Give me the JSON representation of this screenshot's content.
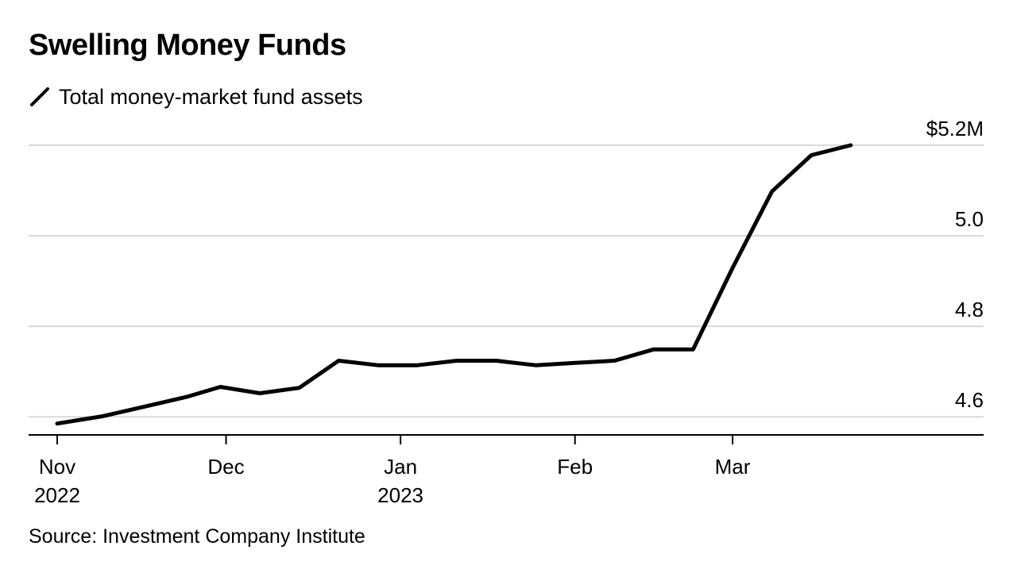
{
  "title": "Swelling Money Funds",
  "legend": {
    "label": "Total money-market fund assets",
    "icon": "diagonal-line-icon"
  },
  "source": "Source: Investment Company Institute",
  "colors": {
    "line": "#000000",
    "grid": "#d9d9d9",
    "axis": "#000000",
    "background": "#ffffff"
  },
  "chart_data": {
    "type": "line",
    "title": "Swelling Money Funds",
    "xlabel": "",
    "ylabel": "",
    "ylim": [
      4.56,
      5.2
    ],
    "grid": true,
    "legend_position": "top-left",
    "y_ticks": [
      {
        "value": 5.2,
        "label": "$5.2M"
      },
      {
        "value": 5.0,
        "label": "5.0"
      },
      {
        "value": 4.8,
        "label": "4.8"
      },
      {
        "value": 4.6,
        "label": "4.6"
      }
    ],
    "x_ticks": [
      {
        "date": "2022-11-01",
        "label": "Nov",
        "sublabel": "2022"
      },
      {
        "date": "2022-12-01",
        "label": "Dec",
        "sublabel": ""
      },
      {
        "date": "2023-01-01",
        "label": "Jan",
        "sublabel": "2023"
      },
      {
        "date": "2023-02-01",
        "label": "Feb",
        "sublabel": ""
      },
      {
        "date": "2023-03-01",
        "label": "Mar",
        "sublabel": ""
      }
    ],
    "series": [
      {
        "name": "Total money-market fund assets",
        "points": [
          {
            "date": "2022-11-01",
            "value": 4.585
          },
          {
            "date": "2022-11-09",
            "value": 4.601
          },
          {
            "date": "2022-11-16",
            "value": 4.621
          },
          {
            "date": "2022-11-24",
            "value": 4.644
          },
          {
            "date": "2022-11-30",
            "value": 4.666
          },
          {
            "date": "2022-12-07",
            "value": 4.652
          },
          {
            "date": "2022-12-14",
            "value": 4.664
          },
          {
            "date": "2022-12-21",
            "value": 4.724
          },
          {
            "date": "2022-12-28",
            "value": 4.714
          },
          {
            "date": "2023-01-04",
            "value": 4.714
          },
          {
            "date": "2023-01-11",
            "value": 4.724
          },
          {
            "date": "2023-01-18",
            "value": 4.724
          },
          {
            "date": "2023-01-25",
            "value": 4.714
          },
          {
            "date": "2023-02-01",
            "value": 4.719
          },
          {
            "date": "2023-02-08",
            "value": 4.724
          },
          {
            "date": "2023-02-15",
            "value": 4.749
          },
          {
            "date": "2023-02-22",
            "value": 4.749
          },
          {
            "date": "2023-03-01",
            "value": 4.929
          },
          {
            "date": "2023-03-08",
            "value": 5.098
          },
          {
            "date": "2023-03-15",
            "value": 5.178
          },
          {
            "date": "2023-03-22",
            "value": 5.2
          }
        ]
      }
    ]
  }
}
